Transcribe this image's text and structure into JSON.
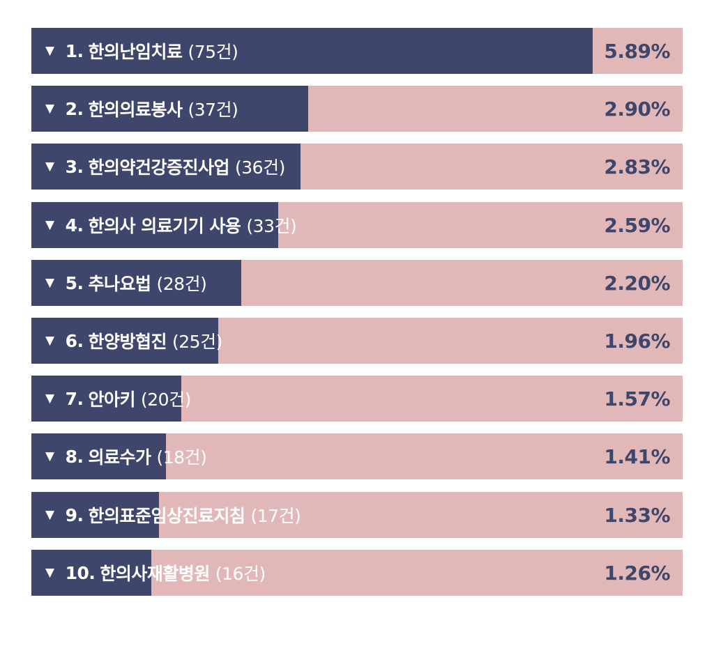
{
  "chart_data": {
    "type": "bar",
    "orientation": "horizontal",
    "marker": "▼",
    "colors": {
      "bar": "#3f466b",
      "track": "#e1b8b7",
      "label": "#ffffff",
      "value_text": "#3f466b"
    },
    "max_count": 87,
    "items": [
      {
        "rank": "1.",
        "name": "한의난임치료",
        "count_label": "(75건)",
        "count": 75,
        "percent_label": "5.89%"
      },
      {
        "rank": "2.",
        "name": "한의의료봉사",
        "count_label": "(37건)",
        "count": 37,
        "percent_label": "2.90%"
      },
      {
        "rank": "3.",
        "name": "한의약건강증진사업",
        "count_label": "(36건)",
        "count": 36,
        "percent_label": "2.83%"
      },
      {
        "rank": "4.",
        "name": "한의사 의료기기 사용",
        "count_label": "(33건)",
        "count": 33,
        "percent_label": "2.59%"
      },
      {
        "rank": "5.",
        "name": "추나요법",
        "count_label": "(28건)",
        "count": 28,
        "percent_label": "2.20%"
      },
      {
        "rank": "6.",
        "name": "한양방협진",
        "count_label": "(25건)",
        "count": 25,
        "percent_label": "1.96%"
      },
      {
        "rank": "7.",
        "name": "안아키",
        "count_label": "(20건)",
        "count": 20,
        "percent_label": "1.57%"
      },
      {
        "rank": "8.",
        "name": "의료수가",
        "count_label": "(18건)",
        "count": 18,
        "percent_label": "1.41%"
      },
      {
        "rank": "9.",
        "name": "한의표준임상진료지침",
        "count_label": "(17건)",
        "count": 17,
        "percent_label": "1.33%"
      },
      {
        "rank": "10.",
        "name": "한의사재활병원",
        "count_label": "(16건)",
        "count": 16,
        "percent_label": "1.26%"
      }
    ]
  }
}
